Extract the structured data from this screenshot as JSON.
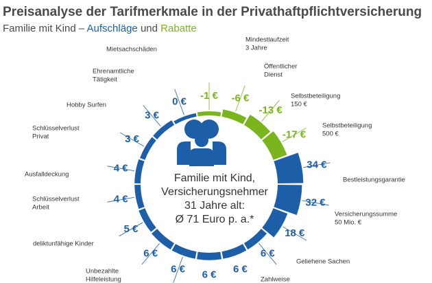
{
  "chart_data": {
    "type": "radial-bar",
    "title": "Preisanalyse der Tarifmerkmale in der Privathaftpflichtversicherung",
    "subtitle": [
      "Familie mit Kind –",
      "Aufschläge",
      "und",
      "Rabatte"
    ],
    "center_text": [
      "Familie mit Kind,",
      "Versicherungsnehmer",
      "31 Jahre alt:",
      "Ø 71 Euro p. a.*"
    ],
    "categories": [
      [
        "Mindestlaufzeit",
        "3 Jahre"
      ],
      [
        "Öffentlicher",
        "Dienst"
      ],
      [
        "Selbstbeteiligung",
        "150 €"
      ],
      [
        "Selbstbeteiligung",
        "500 €"
      ],
      [
        "Bestleistungsgarantie"
      ],
      [
        "Versicherungssumme",
        "50 Mio. €"
      ],
      [
        "Geliehene Sachen"
      ],
      [
        "Zahlweise"
      ],
      null,
      null,
      [
        "Unbezahlte",
        "Hilfeleistung"
      ],
      [
        "deliktunfähige Kinder"
      ],
      [
        "Schlüsselverlust",
        "Arbeit"
      ],
      [
        "Ausfalldeckung"
      ],
      [
        "Schlüsselverlust",
        "Privat"
      ],
      [
        "Hobby Surfen"
      ],
      [
        "Ehrenamtliche",
        "Tätigkeit"
      ],
      [
        "Mietsachschäden"
      ]
    ],
    "values": [
      -1,
      -6,
      -13,
      -17,
      34,
      32,
      18,
      6,
      6,
      6,
      6,
      6,
      5,
      4,
      4,
      3,
      3,
      0
    ],
    "value_labels": [
      "-1 €",
      "-6 €",
      "-13 €",
      "-17 €",
      "34 €",
      "32 €",
      "18 €",
      "6 €",
      "6 €",
      "6 €",
      "6 €",
      "6 €",
      "5 €",
      "4 €",
      "4 €",
      "3 €",
      "3 €",
      "0 €"
    ],
    "colors": {
      "surcharge": "#1d5ea8",
      "discount": "#7ab51d"
    }
  }
}
